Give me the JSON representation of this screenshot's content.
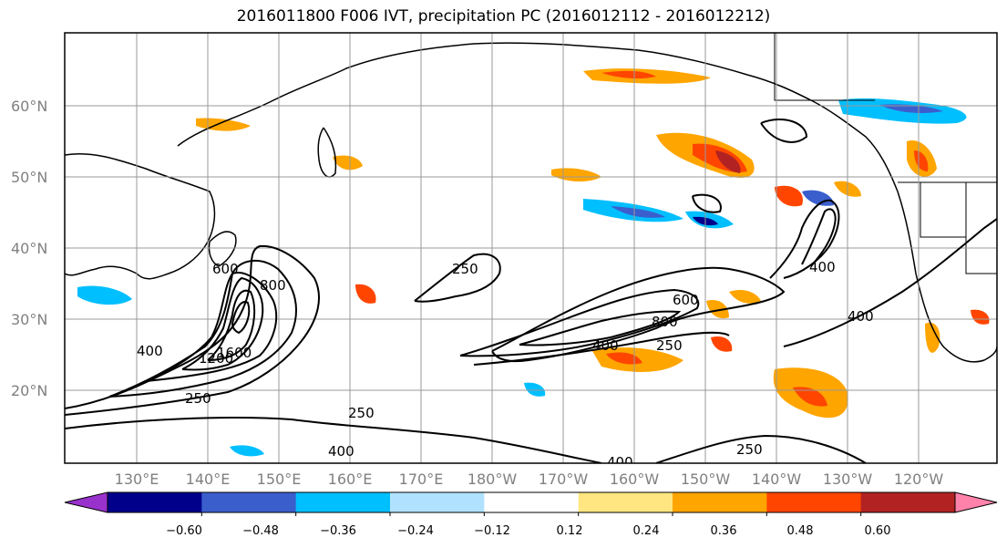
{
  "title": "2016011800 F006 IVT, precipitation PC (2016012112 - 2016012212)",
  "lon_labels": [
    "130°E",
    "140°E",
    "150°E",
    "160°E",
    "170°E",
    "180°W",
    "170°W",
    "160°W",
    "150°W",
    "140°W",
    "130°W",
    "120°W"
  ],
  "lat_labels": [
    "60°N",
    "50°N",
    "40°N",
    "30°N",
    "20°N"
  ],
  "contour_labels": [
    "250",
    "400",
    "600",
    "800",
    "1200",
    "1600",
    "250",
    "250",
    "400",
    "600",
    "800",
    "400",
    "250",
    "400",
    "250",
    "400",
    "400"
  ],
  "colorbar": {
    "ticks": [
      "−0.60",
      "−0.48",
      "−0.36",
      "−0.24",
      "−0.12",
      "0.12",
      "0.24",
      "0.36",
      "0.48",
      "0.60"
    ],
    "colors": [
      "#9932cc",
      "#00008b",
      "#3a5fcd",
      "#00bfff",
      "#b0e2ff",
      "#ffffff",
      "#ffe680",
      "#ffa500",
      "#ff4500",
      "#b22222",
      "#ff82ab"
    ]
  }
}
